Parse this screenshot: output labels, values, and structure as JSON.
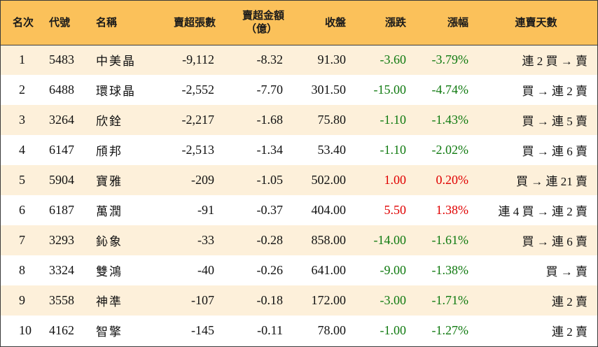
{
  "headers": {
    "rank": "名次",
    "code": "代號",
    "name": "名稱",
    "volume": "賣超張數",
    "amount_line1": "賣超金額",
    "amount_line2": "（億）",
    "close": "收盤",
    "change": "漲跌",
    "pct": "漲幅",
    "days": "連賣天數"
  },
  "colors": {
    "header_bg": "#fbc15a",
    "row_odd_bg": "#fdf0da",
    "row_even_bg": "#ffffff",
    "down": "#107a10",
    "up": "#e00000"
  },
  "rows": [
    {
      "rank": "1",
      "code": "5483",
      "name": "中美晶",
      "volume": "-9,112",
      "amount": "-8.32",
      "close": "91.30",
      "change": "-3.60",
      "pct": "-3.79%",
      "days": "連 2 買 → 賣",
      "dir": "down"
    },
    {
      "rank": "2",
      "code": "6488",
      "name": "環球晶",
      "volume": "-2,552",
      "amount": "-7.70",
      "close": "301.50",
      "change": "-15.00",
      "pct": "-4.74%",
      "days": "買 → 連 2 賣",
      "dir": "down"
    },
    {
      "rank": "3",
      "code": "3264",
      "name": "欣銓",
      "volume": "-2,217",
      "amount": "-1.68",
      "close": "75.80",
      "change": "-1.10",
      "pct": "-1.43%",
      "days": "買 → 連 5 賣",
      "dir": "down"
    },
    {
      "rank": "4",
      "code": "6147",
      "name": "頎邦",
      "volume": "-2,513",
      "amount": "-1.34",
      "close": "53.40",
      "change": "-1.10",
      "pct": "-2.02%",
      "days": "買 → 連 6 賣",
      "dir": "down"
    },
    {
      "rank": "5",
      "code": "5904",
      "name": "寶雅",
      "volume": "-209",
      "amount": "-1.05",
      "close": "502.00",
      "change": "1.00",
      "pct": "0.20%",
      "days": "買 → 連 21 賣",
      "dir": "up"
    },
    {
      "rank": "6",
      "code": "6187",
      "name": "萬潤",
      "volume": "-91",
      "amount": "-0.37",
      "close": "404.00",
      "change": "5.50",
      "pct": "1.38%",
      "days": "連 4 買 → 連 2 賣",
      "dir": "up"
    },
    {
      "rank": "7",
      "code": "3293",
      "name": "鈊象",
      "volume": "-33",
      "amount": "-0.28",
      "close": "858.00",
      "change": "-14.00",
      "pct": "-1.61%",
      "days": "買 → 連 6 賣",
      "dir": "down"
    },
    {
      "rank": "8",
      "code": "3324",
      "name": "雙鴻",
      "volume": "-40",
      "amount": "-0.26",
      "close": "641.00",
      "change": "-9.00",
      "pct": "-1.38%",
      "days": "買 → 賣",
      "dir": "down"
    },
    {
      "rank": "9",
      "code": "3558",
      "name": "神準",
      "volume": "-107",
      "amount": "-0.18",
      "close": "172.00",
      "change": "-3.00",
      "pct": "-1.71%",
      "days": "連 2 賣",
      "dir": "down"
    },
    {
      "rank": "10",
      "code": "4162",
      "name": "智擎",
      "volume": "-145",
      "amount": "-0.11",
      "close": "78.00",
      "change": "-1.00",
      "pct": "-1.27%",
      "days": "連 2 賣",
      "dir": "down"
    }
  ]
}
